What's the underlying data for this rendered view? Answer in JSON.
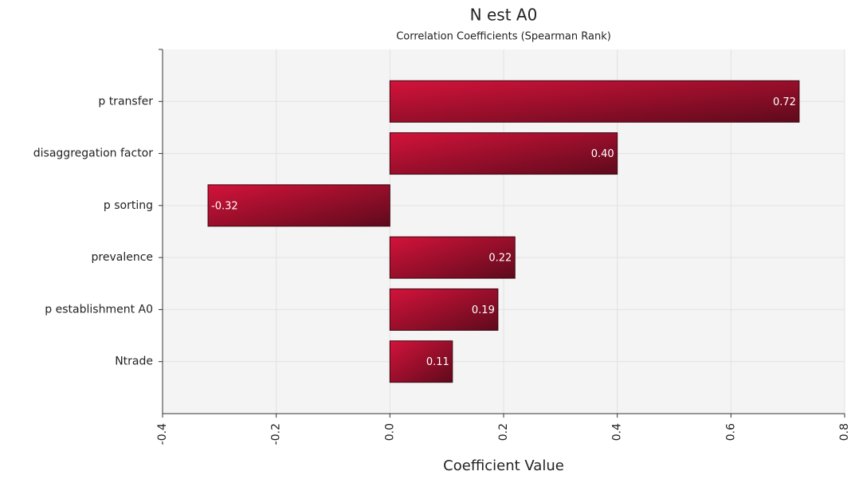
{
  "chart_data": {
    "type": "hbar",
    "title": "N est A0",
    "subtitle": "Correlation Coefficients (Spearman Rank)",
    "x_label": "Coefficient Value",
    "categories": [
      "p transfer",
      "disaggregation factor",
      "p sorting",
      "prevalence",
      "p establishment A0",
      "Ntrade"
    ],
    "values": [
      0.72,
      0.4,
      -0.32,
      0.22,
      0.19,
      0.11
    ],
    "value_labels": [
      "0.72",
      "0.40",
      "-0.32",
      "0.22",
      "0.19",
      "0.11"
    ],
    "color": "#d3133a",
    "xlim": [
      -0.4,
      0.8
    ],
    "xticks": [
      -0.4,
      -0.2,
      {
        "value": 0,
        "label": "0.0"
      },
      0.2,
      0.4,
      0.6,
      0.8
    ],
    "grid": true
  }
}
